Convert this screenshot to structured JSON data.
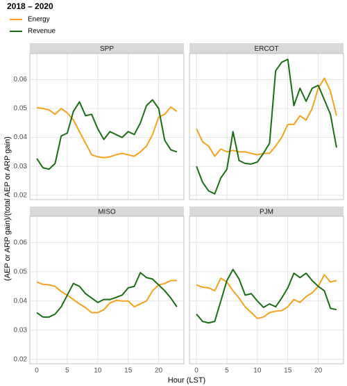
{
  "figure": {
    "legend_title": "2018 – 2020",
    "xlabel": "Hour (LST)",
    "ylabel": "(AEP or ARP gain)/(total AEP or ARP gain)"
  },
  "chart_data": [
    {
      "type": "line",
      "title": "SPP",
      "x": [
        0,
        1,
        2,
        3,
        4,
        5,
        6,
        7,
        8,
        9,
        10,
        11,
        12,
        13,
        14,
        15,
        16,
        17,
        18,
        19,
        20,
        21,
        22,
        23
      ],
      "xlim": [
        -1.15,
        24.15
      ],
      "xticks": [
        0,
        5,
        10,
        15,
        20
      ],
      "ylim": [
        0.0185,
        0.069
      ],
      "yticks": [
        0.02,
        0.03,
        0.04,
        0.05,
        0.06
      ],
      "grid": true,
      "series": [
        {
          "name": "Energy",
          "color": "#f5a11c",
          "values": [
            0.0503,
            0.05,
            0.0495,
            0.048,
            0.05,
            0.0485,
            0.046,
            0.042,
            0.038,
            0.034,
            0.0333,
            0.033,
            0.0333,
            0.034,
            0.0345,
            0.034,
            0.0335,
            0.035,
            0.037,
            0.041,
            0.047,
            0.048,
            0.0505,
            0.049
          ]
        },
        {
          "name": "Revenue",
          "color": "#186d14",
          "values": [
            0.0327,
            0.0295,
            0.029,
            0.031,
            0.0405,
            0.0415,
            0.049,
            0.0523,
            0.0475,
            0.048,
            0.043,
            0.0393,
            0.042,
            0.041,
            0.04,
            0.042,
            0.041,
            0.045,
            0.051,
            0.053,
            0.05,
            0.039,
            0.0357,
            0.035
          ]
        }
      ]
    },
    {
      "type": "line",
      "title": "ERCOT",
      "x": [
        0,
        1,
        2,
        3,
        4,
        5,
        6,
        7,
        8,
        9,
        10,
        11,
        12,
        13,
        14,
        15,
        16,
        17,
        18,
        19,
        20,
        21,
        22,
        23
      ],
      "xlim": [
        -1.15,
        24.15
      ],
      "xticks": [
        0,
        5,
        10,
        15,
        20
      ],
      "ylim": [
        0.0185,
        0.069
      ],
      "yticks": [
        0.02,
        0.03,
        0.04,
        0.05,
        0.06
      ],
      "grid": true,
      "series": [
        {
          "name": "Energy",
          "color": "#f5a11c",
          "values": [
            0.043,
            0.0385,
            0.037,
            0.0335,
            0.036,
            0.035,
            0.0355,
            0.035,
            0.035,
            0.0345,
            0.034,
            0.0345,
            0.0345,
            0.037,
            0.04,
            0.0445,
            0.0445,
            0.0475,
            0.046,
            0.05,
            0.057,
            0.0605,
            0.056,
            0.0475
          ]
        },
        {
          "name": "Revenue",
          "color": "#186d14",
          "values": [
            0.03,
            0.0245,
            0.0215,
            0.0205,
            0.026,
            0.029,
            0.042,
            0.032,
            0.031,
            0.0308,
            0.0315,
            0.0345,
            0.038,
            0.063,
            0.066,
            0.067,
            0.051,
            0.057,
            0.0525,
            0.057,
            0.058,
            0.053,
            0.048,
            0.0365
          ]
        }
      ]
    },
    {
      "type": "line",
      "title": "MISO",
      "x": [
        0,
        1,
        2,
        3,
        4,
        5,
        6,
        7,
        8,
        9,
        10,
        11,
        12,
        13,
        14,
        15,
        16,
        17,
        18,
        19,
        20,
        21,
        22,
        23
      ],
      "xlim": [
        -1.15,
        24.15
      ],
      "xticks": [
        0,
        5,
        10,
        15,
        20
      ],
      "ylim": [
        0.0185,
        0.069
      ],
      "yticks": [
        0.02,
        0.03,
        0.04,
        0.05,
        0.06
      ],
      "grid": true,
      "series": [
        {
          "name": "Energy",
          "color": "#f5a11c",
          "values": [
            0.0465,
            0.0457,
            0.0455,
            0.045,
            0.0432,
            0.042,
            0.0405,
            0.039,
            0.0377,
            0.036,
            0.036,
            0.037,
            0.0393,
            0.0402,
            0.04,
            0.04,
            0.038,
            0.039,
            0.04,
            0.0435,
            0.0455,
            0.046,
            0.047,
            0.047
          ]
        },
        {
          "name": "Revenue",
          "color": "#186d14",
          "values": [
            0.036,
            0.0345,
            0.0345,
            0.0355,
            0.038,
            0.042,
            0.046,
            0.045,
            0.0425,
            0.041,
            0.0395,
            0.0405,
            0.0405,
            0.0412,
            0.042,
            0.0445,
            0.045,
            0.0497,
            0.048,
            0.0475,
            0.0455,
            0.0435,
            0.041,
            0.038
          ]
        }
      ]
    },
    {
      "type": "line",
      "title": "PJM",
      "x": [
        0,
        1,
        2,
        3,
        4,
        5,
        6,
        7,
        8,
        9,
        10,
        11,
        12,
        13,
        14,
        15,
        16,
        17,
        18,
        19,
        20,
        21,
        22,
        23
      ],
      "xlim": [
        -1.15,
        24.15
      ],
      "xticks": [
        0,
        5,
        10,
        15,
        20
      ],
      "ylim": [
        0.0185,
        0.069
      ],
      "yticks": [
        0.02,
        0.03,
        0.04,
        0.05,
        0.06
      ],
      "grid": true,
      "series": [
        {
          "name": "Energy",
          "color": "#f5a11c",
          "values": [
            0.0455,
            0.0447,
            0.0445,
            0.0435,
            0.0478,
            0.0465,
            0.0435,
            0.041,
            0.038,
            0.036,
            0.034,
            0.0345,
            0.036,
            0.0365,
            0.0367,
            0.038,
            0.0405,
            0.0395,
            0.0415,
            0.0428,
            0.045,
            0.049,
            0.0465,
            0.047
          ]
        },
        {
          "name": "Revenue",
          "color": "#186d14",
          "values": [
            0.0355,
            0.033,
            0.0325,
            0.033,
            0.04,
            0.047,
            0.0508,
            0.0475,
            0.042,
            0.0425,
            0.04,
            0.0378,
            0.039,
            0.038,
            0.041,
            0.0445,
            0.0495,
            0.048,
            0.0495,
            0.047,
            0.045,
            0.0435,
            0.0375,
            0.037
          ]
        }
      ]
    }
  ]
}
